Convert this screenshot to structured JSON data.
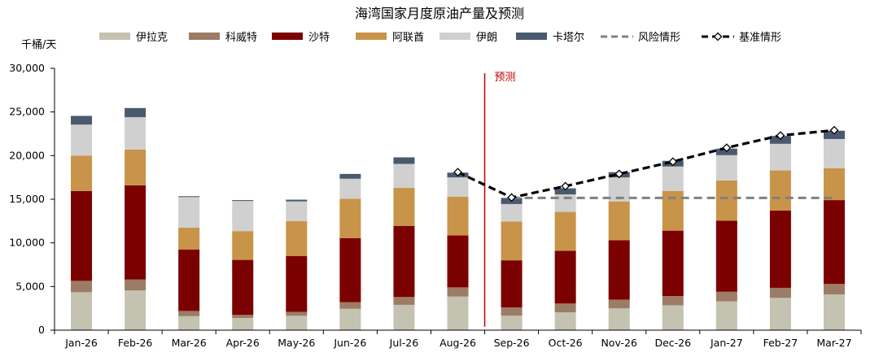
{
  "chart_data": {
    "type": "bar",
    "stacked": true,
    "title": "海湾国家月度原油产量及预测",
    "unit_label": "千桶/天",
    "ylim": [
      0,
      30000
    ],
    "yticks": [
      "0",
      "5,000",
      "10,000",
      "15,000",
      "20,000",
      "25,000",
      "30,000"
    ],
    "ytick_values": [
      0,
      5000,
      10000,
      15000,
      20000,
      25000,
      30000
    ],
    "categories": [
      "Jan-26",
      "Feb-26",
      "Mar-26",
      "Apr-26",
      "May-26",
      "Jun-26",
      "Jul-26",
      "Aug-26",
      "Sep-26",
      "Oct-26",
      "Nov-26",
      "Dec-26",
      "Jan-27",
      "Feb-27",
      "Mar-27"
    ],
    "series": [
      {
        "name": "伊拉克",
        "color": "#c4c2b0",
        "values": [
          4350,
          4550,
          1600,
          1400,
          1650,
          2450,
          2900,
          3850,
          1650,
          2050,
          2500,
          2850,
          3300,
          3700,
          4100
        ]
      },
      {
        "name": "科威特",
        "color": "#9c7c66",
        "values": [
          1300,
          1250,
          600,
          350,
          450,
          750,
          900,
          1050,
          950,
          1000,
          1000,
          1050,
          1100,
          1150,
          1200
        ]
      },
      {
        "name": "沙特",
        "color": "#7b0000",
        "values": [
          10300,
          10800,
          7050,
          6300,
          6400,
          7350,
          8150,
          5950,
          5400,
          6050,
          6800,
          7500,
          8150,
          8850,
          9600
        ]
      },
      {
        "name": "阿联酋",
        "color": "#c8944a",
        "values": [
          4050,
          4100,
          2500,
          3300,
          4000,
          4500,
          4350,
          4450,
          4450,
          4450,
          4450,
          4550,
          4600,
          4600,
          3650
        ]
      },
      {
        "name": "伊朗",
        "color": "#d0d0d0",
        "values": [
          3550,
          3700,
          3500,
          3450,
          2250,
          2300,
          2750,
          2200,
          2000,
          2000,
          2750,
          2800,
          2900,
          3050,
          3350
        ]
      },
      {
        "name": "卡塔尔",
        "color": "#4a5a6e",
        "values": [
          1000,
          1050,
          100,
          100,
          200,
          550,
          750,
          550,
          700,
          700,
          600,
          650,
          750,
          900,
          950
        ]
      }
    ],
    "lines": [
      {
        "name": "风险情形",
        "color": "#808080",
        "style": "dashed",
        "values": [
          null,
          null,
          null,
          null,
          null,
          null,
          null,
          null,
          15150,
          15150,
          15150,
          15150,
          15150,
          15150,
          15150
        ]
      },
      {
        "name": "基准情形",
        "color": "#000000",
        "style": "dashed-marker",
        "values": [
          null,
          null,
          null,
          null,
          null,
          null,
          null,
          18100,
          15200,
          16500,
          17900,
          19300,
          20900,
          22300,
          22900
        ]
      }
    ],
    "annotation": {
      "text": "预测",
      "between": [
        "Aug-26",
        "Sep-26"
      ],
      "color": "#c00000"
    },
    "legend_position": "top",
    "grid": false
  }
}
